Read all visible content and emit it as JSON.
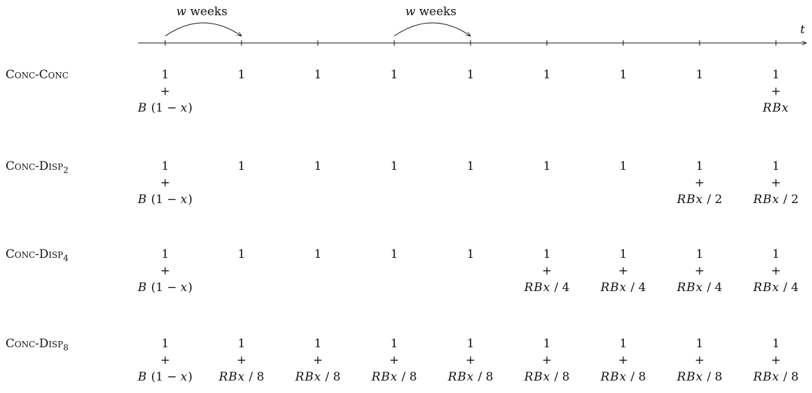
{
  "timeline": {
    "axis_label": "t",
    "interval_label_var": "w",
    "interval_label_text": "weeks"
  },
  "plus_sign": "+",
  "rows": [
    {
      "name_main": "Conc-Conc",
      "name_sub": "",
      "cells": [
        {
          "top": "1",
          "term": "B (1 − x)"
        },
        {
          "top": "1",
          "term": ""
        },
        {
          "top": "1",
          "term": ""
        },
        {
          "top": "1",
          "term": ""
        },
        {
          "top": "1",
          "term": ""
        },
        {
          "top": "1",
          "term": ""
        },
        {
          "top": "1",
          "term": ""
        },
        {
          "top": "1",
          "term": ""
        },
        {
          "top": "1",
          "term": "RBx"
        }
      ]
    },
    {
      "name_main": "Conc-Disp",
      "name_sub": "2",
      "cells": [
        {
          "top": "1",
          "term": "B (1 − x)"
        },
        {
          "top": "1",
          "term": ""
        },
        {
          "top": "1",
          "term": ""
        },
        {
          "top": "1",
          "term": ""
        },
        {
          "top": "1",
          "term": ""
        },
        {
          "top": "1",
          "term": ""
        },
        {
          "top": "1",
          "term": ""
        },
        {
          "top": "1",
          "term": "RBx / 2"
        },
        {
          "top": "1",
          "term": "RBx / 2"
        }
      ]
    },
    {
      "name_main": "Conc-Disp",
      "name_sub": "4",
      "cells": [
        {
          "top": "1",
          "term": "B (1 − x)"
        },
        {
          "top": "1",
          "term": ""
        },
        {
          "top": "1",
          "term": ""
        },
        {
          "top": "1",
          "term": ""
        },
        {
          "top": "1",
          "term": ""
        },
        {
          "top": "1",
          "term": "RBx / 4"
        },
        {
          "top": "1",
          "term": "RBx / 4"
        },
        {
          "top": "1",
          "term": "RBx / 4"
        },
        {
          "top": "1",
          "term": "RBx / 4"
        }
      ]
    },
    {
      "name_main": "Conc-Disp",
      "name_sub": "8",
      "cells": [
        {
          "top": "1",
          "term": "B (1 − x)"
        },
        {
          "top": "1",
          "term": "RBx / 8"
        },
        {
          "top": "1",
          "term": "RBx / 8"
        },
        {
          "top": "1",
          "term": "RBx / 8"
        },
        {
          "top": "1",
          "term": "RBx / 8"
        },
        {
          "top": "1",
          "term": "RBx / 8"
        },
        {
          "top": "1",
          "term": "RBx / 8"
        },
        {
          "top": "1",
          "term": "RBx / 8"
        },
        {
          "top": "1",
          "term": "RBx / 8"
        }
      ]
    }
  ]
}
